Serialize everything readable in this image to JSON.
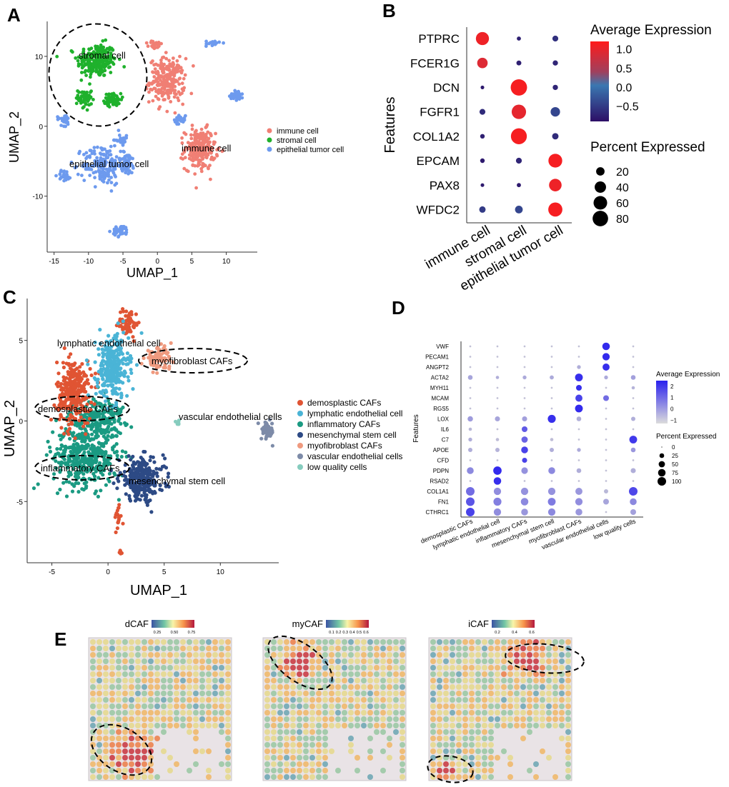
{
  "figure": {
    "panel_letters": [
      "A",
      "B",
      "C",
      "D",
      "E"
    ]
  },
  "panelA": {
    "chart_data": {
      "type": "scatter",
      "xlabel": "UMAP_1",
      "ylabel": "UMAP_2",
      "xticks": [
        -15,
        -10,
        -5,
        0,
        5,
        10
      ],
      "yticks": [
        -10,
        0,
        10
      ],
      "xlim": [
        -16,
        14.5
      ],
      "ylim": [
        -18,
        15
      ],
      "legend": [
        {
          "name": "immune cell",
          "color": "#f07f74"
        },
        {
          "name": "stromal cell",
          "color": "#1fb12c"
        },
        {
          "name": "epithelial tumor cell",
          "color": "#6d9aee"
        }
      ],
      "annotations": [
        "stromal cell",
        "immune cell",
        "epithelial tumor cell"
      ],
      "clusters": [
        {
          "cls": 1,
          "cx": -8.8,
          "cy": 9.4,
          "sx": 2.6,
          "sy": 2.2,
          "n": 240
        },
        {
          "cls": 1,
          "cx": -10.5,
          "cy": 4.0,
          "sx": 0.9,
          "sy": 1.6,
          "n": 50
        },
        {
          "cls": 1,
          "cx": -6.5,
          "cy": 3.8,
          "sx": 1.1,
          "sy": 0.8,
          "n": 60
        },
        {
          "cls": 0,
          "cx": 1.4,
          "cy": 6.5,
          "sx": 2.3,
          "sy": 2.9,
          "n": 230
        },
        {
          "cls": 0,
          "cx": 6.2,
          "cy": -3.3,
          "sx": 2.0,
          "sy": 2.6,
          "n": 230
        },
        {
          "cls": 0,
          "cx": -0.3,
          "cy": 11.6,
          "sx": 0.9,
          "sy": 0.6,
          "n": 25
        },
        {
          "cls": 2,
          "cx": -8.0,
          "cy": -5.5,
          "sx": 2.6,
          "sy": 2.6,
          "n": 170
        },
        {
          "cls": 2,
          "cx": -4.5,
          "cy": -5.3,
          "sx": 1.3,
          "sy": 1.5,
          "n": 60
        },
        {
          "cls": 2,
          "cx": -13.5,
          "cy": -7.0,
          "sx": 0.9,
          "sy": 0.8,
          "n": 25
        },
        {
          "cls": 2,
          "cx": -5.3,
          "cy": -15.0,
          "sx": 1.1,
          "sy": 0.7,
          "n": 40
        },
        {
          "cls": 2,
          "cx": 11.5,
          "cy": 4.5,
          "sx": 0.9,
          "sy": 0.7,
          "n": 35
        },
        {
          "cls": 2,
          "cx": -5.2,
          "cy": -2.0,
          "sx": 0.9,
          "sy": 0.6,
          "n": 25
        },
        {
          "cls": 2,
          "cx": -13.5,
          "cy": 1.0,
          "sx": 1.0,
          "sy": 0.8,
          "n": 25
        },
        {
          "cls": 2,
          "cx": 3.2,
          "cy": 1.0,
          "sx": 0.8,
          "sy": 0.6,
          "n": 20
        },
        {
          "cls": 2,
          "cx": 8.0,
          "cy": 11.8,
          "sx": 0.9,
          "sy": 0.5,
          "n": 15
        }
      ]
    }
  },
  "panelB": {
    "chart_data": {
      "type": "dot",
      "ylabel": "Features",
      "features": [
        "PTPRC",
        "FCER1G",
        "DCN",
        "FGFR1",
        "COL1A2",
        "EPCAM",
        "PAX8",
        "WFDC2"
      ],
      "groups": [
        "immune cell",
        "stromal cell",
        "epithelial tumor cell"
      ],
      "avg_expression": [
        [
          1.1,
          -0.75,
          -0.6
        ],
        [
          1.0,
          -0.75,
          -0.7
        ],
        [
          -0.8,
          1.15,
          -0.7
        ],
        [
          -0.65,
          1.05,
          -0.4
        ],
        [
          -0.75,
          1.15,
          -0.65
        ],
        [
          -0.8,
          -0.7,
          1.15
        ],
        [
          -0.8,
          -0.8,
          1.1
        ],
        [
          -0.5,
          -0.4,
          1.15
        ]
      ],
      "pct_expressed": [
        [
          55,
          3,
          8
        ],
        [
          33,
          5,
          6
        ],
        [
          2,
          90,
          6
        ],
        [
          8,
          68,
          26
        ],
        [
          4,
          85,
          10
        ],
        [
          4,
          8,
          62
        ],
        [
          2,
          3,
          50
        ],
        [
          10,
          16,
          65
        ]
      ],
      "color_legend_title": "Average Expression",
      "color_ticks": [
        "1.0",
        "0.5",
        "0.0",
        "−0.5"
      ],
      "color_range": [
        -0.9,
        1.2
      ],
      "size_legend_title": "Percent Expressed",
      "size_ticks": [
        20,
        40,
        60,
        80
      ],
      "colors": {
        "low": "#2d0f66",
        "mid": "#3a77b1",
        "high": "#ff1a1a"
      }
    }
  },
  "panelC": {
    "chart_data": {
      "type": "scatter",
      "xlabel": "UMAP_1",
      "ylabel": "UMAP_2",
      "xticks": [
        -5,
        0,
        5,
        10
      ],
      "yticks": [
        -5,
        0,
        5
      ],
      "xlim": [
        -7.2,
        15.2
      ],
      "ylim": [
        -8.8,
        7.6
      ],
      "legend": [
        {
          "name": "demosplastic CAFs",
          "color": "#e05433"
        },
        {
          "name": "lymphatic endothelial cell",
          "color": "#4ab4d6"
        },
        {
          "name": "inflammatory CAFs",
          "color": "#1a9a82"
        },
        {
          "name": "mesenchymal stem cell",
          "color": "#2d4a85"
        },
        {
          "name": "myofibroblast CAFs",
          "color": "#ef9a7f"
        },
        {
          "name": "vascular endothelial cells",
          "color": "#7d8ba8"
        },
        {
          "name": "low quality cells",
          "color": "#86ccbe"
        }
      ],
      "annotations": [
        "lymphatic endothelial cell",
        "myofibroblast CAFs",
        "demosplastic CAFs",
        "vascular endothelial cells",
        "inflammatory CAFs",
        "mesenchymal stem cell"
      ],
      "clusters": [
        {
          "cls": 2,
          "cx": -2.0,
          "cy": -2.2,
          "sx": 2.6,
          "sy": 1.7,
          "n": 420
        },
        {
          "cls": 2,
          "cx": -1.0,
          "cy": 0.2,
          "sx": 2.2,
          "sy": 1.2,
          "n": 200
        },
        {
          "cls": 0,
          "cx": -3.0,
          "cy": 1.8,
          "sx": 1.4,
          "sy": 1.8,
          "n": 300
        },
        {
          "cls": 0,
          "cx": 1.8,
          "cy": 6.1,
          "sx": 0.8,
          "sy": 0.8,
          "n": 60
        },
        {
          "cls": 0,
          "cx": 0.9,
          "cy": -6.0,
          "sx": 0.3,
          "sy": 0.8,
          "n": 20
        },
        {
          "cls": 1,
          "cx": 0.4,
          "cy": 3.3,
          "sx": 1.3,
          "sy": 1.8,
          "n": 300
        },
        {
          "cls": 3,
          "cx": 3.0,
          "cy": -3.6,
          "sx": 1.8,
          "sy": 1.2,
          "n": 260
        },
        {
          "cls": 4,
          "cx": 4.5,
          "cy": 3.9,
          "sx": 1.1,
          "sy": 0.6,
          "n": 80
        },
        {
          "cls": 5,
          "cx": 14.2,
          "cy": -0.6,
          "sx": 0.5,
          "sy": 0.5,
          "n": 50
        },
        {
          "cls": 6,
          "cx": 6.2,
          "cy": -0.1,
          "sx": 0.15,
          "sy": 0.15,
          "n": 5
        },
        {
          "cls": 0,
          "cx": 1.1,
          "cy": -8.2,
          "sx": 0.15,
          "sy": 0.15,
          "n": 6
        }
      ]
    }
  },
  "panelD": {
    "chart_data": {
      "type": "dot",
      "ylabel": "Features",
      "features": [
        "VWF",
        "PECAM1",
        "ANGPT2",
        "ACTA2",
        "MYH11",
        "MCAM",
        "RGS5",
        "LOX",
        "IL6",
        "C7",
        "APOE",
        "CFD",
        "PDPN",
        "RSAD2",
        "COL1A1",
        "FN1",
        "CTHRC1"
      ],
      "groups": [
        "demosplastic CAFs",
        "lymphatic endothelial cell",
        "inflammatory CAFs",
        "mesenchymal stem cell",
        "myofibroblast CAFs",
        "vascular endothelial cells",
        "low quality cells"
      ],
      "avg_expression": [
        [
          -0.9,
          -0.9,
          -0.9,
          -0.9,
          -0.9,
          2.3,
          -0.9
        ],
        [
          -0.9,
          -0.9,
          -0.9,
          -0.9,
          -0.9,
          2.3,
          -0.9
        ],
        [
          -0.9,
          -0.9,
          -0.9,
          -0.9,
          -0.5,
          2.2,
          -0.9
        ],
        [
          -0.3,
          -0.5,
          -0.4,
          -0.4,
          2.2,
          -0.4,
          -0.2
        ],
        [
          -0.9,
          -0.9,
          -0.9,
          -0.9,
          2.2,
          -0.9,
          -0.6
        ],
        [
          -0.9,
          -0.9,
          -0.9,
          -0.9,
          1.8,
          0.9,
          -0.9
        ],
        [
          -0.9,
          -0.9,
          -0.9,
          -0.9,
          2.3,
          -0.9,
          -0.9
        ],
        [
          -0.1,
          -0.3,
          -0.2,
          2.2,
          -0.5,
          -0.9,
          -0.5
        ],
        [
          -0.7,
          -0.9,
          1.3,
          -0.9,
          -0.9,
          -0.9,
          -0.9
        ],
        [
          -0.5,
          -0.8,
          1.1,
          -0.8,
          -0.9,
          -0.9,
          2.0
        ],
        [
          -0.5,
          -0.6,
          1.8,
          -0.5,
          -0.4,
          -0.9,
          0.0
        ],
        [
          -0.9,
          -0.9,
          1.8,
          -0.9,
          -0.9,
          -0.9,
          -0.9
        ],
        [
          0.3,
          2.3,
          0.1,
          0.3,
          -0.5,
          -0.9,
          -0.5
        ],
        [
          -0.9,
          2.2,
          -0.9,
          -0.9,
          -0.9,
          -0.9,
          -0.9
        ],
        [
          0.9,
          0.2,
          0.1,
          0.1,
          0.0,
          -0.7,
          1.7
        ],
        [
          1.4,
          0.5,
          0.3,
          0.6,
          0.2,
          -0.3,
          0.3
        ],
        [
          1.8,
          0.2,
          0.0,
          0.3,
          0.0,
          -0.9,
          -0.2
        ]
      ],
      "pct_expressed": [
        [
          2,
          2,
          2,
          2,
          2,
          75,
          2
        ],
        [
          2,
          2,
          2,
          2,
          2,
          70,
          2
        ],
        [
          2,
          2,
          2,
          2,
          15,
          65,
          2
        ],
        [
          25,
          10,
          15,
          18,
          80,
          15,
          25
        ],
        [
          2,
          2,
          2,
          2,
          40,
          2,
          10
        ],
        [
          2,
          2,
          2,
          2,
          65,
          40,
          2
        ],
        [
          2,
          2,
          2,
          2,
          80,
          2,
          2
        ],
        [
          35,
          30,
          30,
          85,
          25,
          2,
          20
        ],
        [
          10,
          2,
          40,
          2,
          2,
          2,
          2
        ],
        [
          15,
          10,
          50,
          10,
          2,
          2,
          80
        ],
        [
          20,
          20,
          60,
          20,
          15,
          2,
          25
        ],
        [
          2,
          2,
          30,
          2,
          2,
          2,
          2
        ],
        [
          60,
          95,
          55,
          60,
          25,
          2,
          30
        ],
        [
          2,
          75,
          2,
          2,
          2,
          2,
          2
        ],
        [
          100,
          70,
          70,
          70,
          65,
          20,
          100
        ],
        [
          100,
          85,
          75,
          80,
          70,
          40,
          60
        ],
        [
          100,
          70,
          60,
          70,
          60,
          2,
          40
        ]
      ],
      "color_legend_title": "Average Expression",
      "color_ticks": [
        "2",
        "1",
        "0",
        "−1"
      ],
      "color_range": [
        -1.3,
        2.5
      ],
      "size_legend_title": "Percent Expressed",
      "size_ticks": [
        0,
        25,
        50,
        75,
        100
      ],
      "colors": {
        "low": "#d4d4d4",
        "high": "#2a21ee"
      }
    }
  },
  "panelE": {
    "tiles": [
      {
        "title": "dCAF",
        "ticks": [
          "0.25",
          "0.50",
          "0.75"
        ]
      },
      {
        "title": "myCAF",
        "ticks": [
          "0.1",
          "0.2",
          "0.3",
          "0.4",
          "0.5",
          "0.6"
        ]
      },
      {
        "title": "iCAF",
        "ticks": [
          "0.2",
          "0.4",
          "0.6"
        ]
      }
    ]
  }
}
